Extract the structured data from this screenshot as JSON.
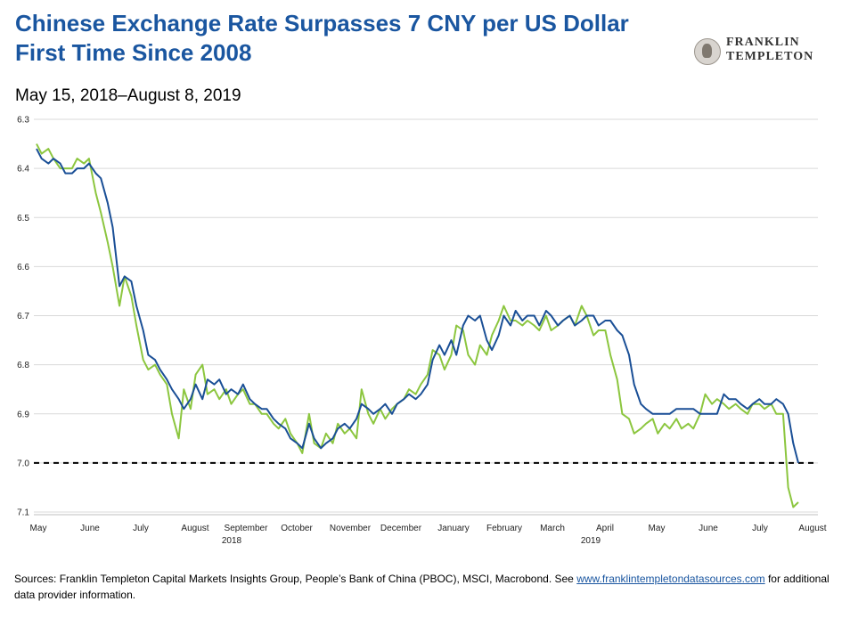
{
  "header": {
    "title": "Chinese Exchange Rate Surpasses 7 CNY per US Dollar First Time Since 2008",
    "subtitle": "May 15, 2018–August 8, 2019"
  },
  "logo": {
    "line1": "FRANKLIN",
    "line2": "TEMPLETON"
  },
  "footer": {
    "sources_text": "Sources: Franklin Templeton Capital Markets Insights Group, People’s Bank of China (PBOC), MSCI, Macrobond. See ",
    "link_text": "www.franklintempletondatasources.com",
    "tail_text": " for additional data provider information."
  },
  "colors": {
    "title": "#1a56a0",
    "series_blue": "#1a4f96",
    "series_green": "#8cc63f",
    "reference": "#000000"
  },
  "chart_data": {
    "type": "line",
    "y_inverted": true,
    "ylim": [
      6.3,
      7.1
    ],
    "yticks": [
      "6.3",
      "6.4",
      "6.5",
      "6.6",
      "6.7",
      "6.8",
      "6.9",
      "7.0",
      "7.1"
    ],
    "x_month_labels": [
      "May",
      "June",
      "July",
      "August",
      "September",
      "October",
      "November",
      "December",
      "January",
      "February",
      "March",
      "April",
      "May",
      "June",
      "July",
      "August"
    ],
    "x_year_labels": [
      {
        "label": "2018",
        "after_month": "September"
      },
      {
        "label": "2019",
        "after_month": "April"
      }
    ],
    "reference_line": {
      "y": 7.0,
      "style": "dashed"
    },
    "grid": "horizontal",
    "series": [
      {
        "color": "#1a4f96",
        "points": [
          [
            "2018-05-15",
            6.36
          ],
          [
            "2018-05-18",
            6.38
          ],
          [
            "2018-05-22",
            6.39
          ],
          [
            "2018-05-25",
            6.38
          ],
          [
            "2018-05-29",
            6.39
          ],
          [
            "2018-06-01",
            6.41
          ],
          [
            "2018-06-05",
            6.41
          ],
          [
            "2018-06-08",
            6.4
          ],
          [
            "2018-06-12",
            6.4
          ],
          [
            "2018-06-15",
            6.39
          ],
          [
            "2018-06-19",
            6.41
          ],
          [
            "2018-06-22",
            6.42
          ],
          [
            "2018-06-26",
            6.47
          ],
          [
            "2018-06-29",
            6.52
          ],
          [
            "2018-07-03",
            6.64
          ],
          [
            "2018-07-06",
            6.62
          ],
          [
            "2018-07-10",
            6.63
          ],
          [
            "2018-07-13",
            6.68
          ],
          [
            "2018-07-17",
            6.73
          ],
          [
            "2018-07-20",
            6.78
          ],
          [
            "2018-07-24",
            6.79
          ],
          [
            "2018-07-27",
            6.81
          ],
          [
            "2018-07-31",
            6.83
          ],
          [
            "2018-08-03",
            6.85
          ],
          [
            "2018-08-07",
            6.87
          ],
          [
            "2018-08-10",
            6.89
          ],
          [
            "2018-08-14",
            6.87
          ],
          [
            "2018-08-17",
            6.84
          ],
          [
            "2018-08-21",
            6.87
          ],
          [
            "2018-08-24",
            6.83
          ],
          [
            "2018-08-28",
            6.84
          ],
          [
            "2018-08-31",
            6.83
          ],
          [
            "2018-09-04",
            6.86
          ],
          [
            "2018-09-07",
            6.85
          ],
          [
            "2018-09-11",
            6.86
          ],
          [
            "2018-09-14",
            6.84
          ],
          [
            "2018-09-18",
            6.87
          ],
          [
            "2018-09-21",
            6.88
          ],
          [
            "2018-09-25",
            6.89
          ],
          [
            "2018-09-28",
            6.89
          ],
          [
            "2018-10-02",
            6.91
          ],
          [
            "2018-10-05",
            6.92
          ],
          [
            "2018-10-09",
            6.93
          ],
          [
            "2018-10-12",
            6.95
          ],
          [
            "2018-10-16",
            6.96
          ],
          [
            "2018-10-19",
            6.97
          ],
          [
            "2018-10-23",
            6.92
          ],
          [
            "2018-10-26",
            6.95
          ],
          [
            "2018-10-30",
            6.97
          ],
          [
            "2018-11-02",
            6.96
          ],
          [
            "2018-11-06",
            6.95
          ],
          [
            "2018-11-09",
            6.93
          ],
          [
            "2018-11-13",
            6.92
          ],
          [
            "2018-11-16",
            6.93
          ],
          [
            "2018-11-20",
            6.91
          ],
          [
            "2018-11-23",
            6.88
          ],
          [
            "2018-11-27",
            6.89
          ],
          [
            "2018-11-30",
            6.9
          ],
          [
            "2018-12-04",
            6.89
          ],
          [
            "2018-12-07",
            6.88
          ],
          [
            "2018-12-11",
            6.9
          ],
          [
            "2018-12-14",
            6.88
          ],
          [
            "2018-12-18",
            6.87
          ],
          [
            "2018-12-21",
            6.86
          ],
          [
            "2018-12-25",
            6.87
          ],
          [
            "2018-12-28",
            6.86
          ],
          [
            "2019-01-01",
            6.84
          ],
          [
            "2019-01-04",
            6.79
          ],
          [
            "2019-01-08",
            6.76
          ],
          [
            "2019-01-11",
            6.78
          ],
          [
            "2019-01-15",
            6.75
          ],
          [
            "2019-01-18",
            6.78
          ],
          [
            "2019-01-22",
            6.72
          ],
          [
            "2019-01-25",
            6.7
          ],
          [
            "2019-01-29",
            6.71
          ],
          [
            "2019-02-01",
            6.7
          ],
          [
            "2019-02-05",
            6.75
          ],
          [
            "2019-02-08",
            6.77
          ],
          [
            "2019-02-12",
            6.74
          ],
          [
            "2019-02-15",
            6.7
          ],
          [
            "2019-02-19",
            6.72
          ],
          [
            "2019-02-22",
            6.69
          ],
          [
            "2019-02-26",
            6.71
          ],
          [
            "2019-03-01",
            6.7
          ],
          [
            "2019-03-05",
            6.7
          ],
          [
            "2019-03-08",
            6.72
          ],
          [
            "2019-03-12",
            6.69
          ],
          [
            "2019-03-15",
            6.7
          ],
          [
            "2019-03-19",
            6.72
          ],
          [
            "2019-03-22",
            6.71
          ],
          [
            "2019-03-26",
            6.7
          ],
          [
            "2019-03-29",
            6.72
          ],
          [
            "2019-04-02",
            6.71
          ],
          [
            "2019-04-05",
            6.7
          ],
          [
            "2019-04-09",
            6.7
          ],
          [
            "2019-04-12",
            6.72
          ],
          [
            "2019-04-16",
            6.71
          ],
          [
            "2019-04-19",
            6.71
          ],
          [
            "2019-04-23",
            6.73
          ],
          [
            "2019-04-26",
            6.74
          ],
          [
            "2019-04-30",
            6.78
          ],
          [
            "2019-05-03",
            6.84
          ],
          [
            "2019-05-07",
            6.88
          ],
          [
            "2019-05-10",
            6.89
          ],
          [
            "2019-05-14",
            6.9
          ],
          [
            "2019-05-17",
            6.9
          ],
          [
            "2019-05-21",
            6.9
          ],
          [
            "2019-05-24",
            6.9
          ],
          [
            "2019-05-28",
            6.89
          ],
          [
            "2019-05-31",
            6.89
          ],
          [
            "2019-06-04",
            6.89
          ],
          [
            "2019-06-07",
            6.89
          ],
          [
            "2019-06-11",
            6.9
          ],
          [
            "2019-06-14",
            6.9
          ],
          [
            "2019-06-18",
            6.9
          ],
          [
            "2019-06-21",
            6.9
          ],
          [
            "2019-06-25",
            6.86
          ],
          [
            "2019-06-28",
            6.87
          ],
          [
            "2019-07-02",
            6.87
          ],
          [
            "2019-07-05",
            6.88
          ],
          [
            "2019-07-09",
            6.89
          ],
          [
            "2019-07-12",
            6.88
          ],
          [
            "2019-07-16",
            6.87
          ],
          [
            "2019-07-19",
            6.88
          ],
          [
            "2019-07-23",
            6.88
          ],
          [
            "2019-07-26",
            6.87
          ],
          [
            "2019-07-30",
            6.88
          ],
          [
            "2019-08-02",
            6.9
          ],
          [
            "2019-08-05",
            6.96
          ],
          [
            "2019-08-08",
            7.0
          ]
        ]
      },
      {
        "color": "#8cc63f",
        "points": [
          [
            "2018-05-15",
            6.35
          ],
          [
            "2018-05-18",
            6.37
          ],
          [
            "2018-05-22",
            6.36
          ],
          [
            "2018-05-25",
            6.38
          ],
          [
            "2018-05-29",
            6.4
          ],
          [
            "2018-06-01",
            6.4
          ],
          [
            "2018-06-05",
            6.4
          ],
          [
            "2018-06-08",
            6.38
          ],
          [
            "2018-06-12",
            6.39
          ],
          [
            "2018-06-15",
            6.38
          ],
          [
            "2018-06-19",
            6.45
          ],
          [
            "2018-06-22",
            6.49
          ],
          [
            "2018-06-26",
            6.55
          ],
          [
            "2018-06-29",
            6.6
          ],
          [
            "2018-07-03",
            6.68
          ],
          [
            "2018-07-06",
            6.62
          ],
          [
            "2018-07-10",
            6.66
          ],
          [
            "2018-07-13",
            6.72
          ],
          [
            "2018-07-17",
            6.79
          ],
          [
            "2018-07-20",
            6.81
          ],
          [
            "2018-07-24",
            6.8
          ],
          [
            "2018-07-27",
            6.82
          ],
          [
            "2018-07-31",
            6.84
          ],
          [
            "2018-08-03",
            6.9
          ],
          [
            "2018-08-07",
            6.95
          ],
          [
            "2018-08-10",
            6.85
          ],
          [
            "2018-08-14",
            6.89
          ],
          [
            "2018-08-17",
            6.82
          ],
          [
            "2018-08-21",
            6.8
          ],
          [
            "2018-08-24",
            6.86
          ],
          [
            "2018-08-28",
            6.85
          ],
          [
            "2018-08-31",
            6.87
          ],
          [
            "2018-09-04",
            6.85
          ],
          [
            "2018-09-07",
            6.88
          ],
          [
            "2018-09-11",
            6.86
          ],
          [
            "2018-09-14",
            6.85
          ],
          [
            "2018-09-18",
            6.88
          ],
          [
            "2018-09-21",
            6.88
          ],
          [
            "2018-09-25",
            6.9
          ],
          [
            "2018-09-28",
            6.9
          ],
          [
            "2018-10-02",
            6.92
          ],
          [
            "2018-10-05",
            6.93
          ],
          [
            "2018-10-09",
            6.91
          ],
          [
            "2018-10-12",
            6.94
          ],
          [
            "2018-10-16",
            6.96
          ],
          [
            "2018-10-19",
            6.98
          ],
          [
            "2018-10-23",
            6.9
          ],
          [
            "2018-10-26",
            6.96
          ],
          [
            "2018-10-30",
            6.97
          ],
          [
            "2018-11-02",
            6.94
          ],
          [
            "2018-11-06",
            6.96
          ],
          [
            "2018-11-09",
            6.92
          ],
          [
            "2018-11-13",
            6.94
          ],
          [
            "2018-11-16",
            6.93
          ],
          [
            "2018-11-20",
            6.95
          ],
          [
            "2018-11-23",
            6.85
          ],
          [
            "2018-11-27",
            6.9
          ],
          [
            "2018-11-30",
            6.92
          ],
          [
            "2018-12-04",
            6.89
          ],
          [
            "2018-12-07",
            6.91
          ],
          [
            "2018-12-11",
            6.89
          ],
          [
            "2018-12-14",
            6.88
          ],
          [
            "2018-12-18",
            6.87
          ],
          [
            "2018-12-21",
            6.85
          ],
          [
            "2018-12-25",
            6.86
          ],
          [
            "2018-12-28",
            6.84
          ],
          [
            "2019-01-01",
            6.82
          ],
          [
            "2019-01-04",
            6.77
          ],
          [
            "2019-01-08",
            6.78
          ],
          [
            "2019-01-11",
            6.81
          ],
          [
            "2019-01-15",
            6.78
          ],
          [
            "2019-01-18",
            6.72
          ],
          [
            "2019-01-22",
            6.73
          ],
          [
            "2019-01-25",
            6.78
          ],
          [
            "2019-01-29",
            6.8
          ],
          [
            "2019-02-01",
            6.76
          ],
          [
            "2019-02-05",
            6.78
          ],
          [
            "2019-02-08",
            6.74
          ],
          [
            "2019-02-12",
            6.71
          ],
          [
            "2019-02-15",
            6.68
          ],
          [
            "2019-02-19",
            6.71
          ],
          [
            "2019-02-22",
            6.71
          ],
          [
            "2019-02-26",
            6.72
          ],
          [
            "2019-03-01",
            6.71
          ],
          [
            "2019-03-05",
            6.72
          ],
          [
            "2019-03-08",
            6.73
          ],
          [
            "2019-03-12",
            6.7
          ],
          [
            "2019-03-15",
            6.73
          ],
          [
            "2019-03-19",
            6.72
          ],
          [
            "2019-03-22",
            6.71
          ],
          [
            "2019-03-26",
            6.7
          ],
          [
            "2019-03-29",
            6.72
          ],
          [
            "2019-04-02",
            6.68
          ],
          [
            "2019-04-05",
            6.7
          ],
          [
            "2019-04-09",
            6.74
          ],
          [
            "2019-04-12",
            6.73
          ],
          [
            "2019-04-16",
            6.73
          ],
          [
            "2019-04-19",
            6.78
          ],
          [
            "2019-04-23",
            6.83
          ],
          [
            "2019-04-26",
            6.9
          ],
          [
            "2019-04-30",
            6.91
          ],
          [
            "2019-05-03",
            6.94
          ],
          [
            "2019-05-07",
            6.93
          ],
          [
            "2019-05-10",
            6.92
          ],
          [
            "2019-05-14",
            6.91
          ],
          [
            "2019-05-17",
            6.94
          ],
          [
            "2019-05-21",
            6.92
          ],
          [
            "2019-05-24",
            6.93
          ],
          [
            "2019-05-28",
            6.91
          ],
          [
            "2019-05-31",
            6.93
          ],
          [
            "2019-06-04",
            6.92
          ],
          [
            "2019-06-07",
            6.93
          ],
          [
            "2019-06-11",
            6.9
          ],
          [
            "2019-06-14",
            6.86
          ],
          [
            "2019-06-18",
            6.88
          ],
          [
            "2019-06-21",
            6.87
          ],
          [
            "2019-06-25",
            6.88
          ],
          [
            "2019-06-28",
            6.89
          ],
          [
            "2019-07-02",
            6.88
          ],
          [
            "2019-07-05",
            6.89
          ],
          [
            "2019-07-09",
            6.9
          ],
          [
            "2019-07-12",
            6.88
          ],
          [
            "2019-07-16",
            6.88
          ],
          [
            "2019-07-19",
            6.89
          ],
          [
            "2019-07-23",
            6.88
          ],
          [
            "2019-07-26",
            6.9
          ],
          [
            "2019-07-30",
            6.9
          ],
          [
            "2019-08-02",
            7.05
          ],
          [
            "2019-08-05",
            7.09
          ],
          [
            "2019-08-08",
            7.08
          ]
        ]
      }
    ]
  }
}
